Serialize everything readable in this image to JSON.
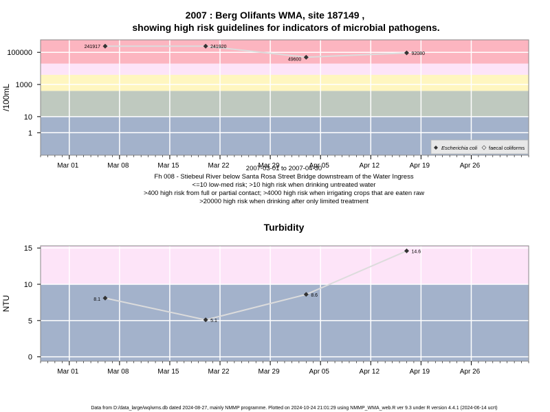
{
  "title_line1": "2007 : Berg Olifants WMA, site 187149 ,",
  "title_line2": "showing high risk guidelines for indicators of microbial pathogens.",
  "captions": [
    "2007-03-01 to 2007-04-30",
    "Fh 008 - Stiebeul River below Santa Rosa Street Bridge downstream of the Water Ingress",
    "<=10 low-med risk; >10 high risk when drinking untreated water",
    ">400 high risk from full or partial contact; >4000 high risk when irrigating crops that are eaten raw",
    ">20000 high risk when drinking after only limited treatment"
  ],
  "footer": "Data from D:/data_large/wq/wms.db dated 2024-08-27, mainly NMMP programme. Plotted on 2024-10-24 21:01:29 using NMMP_WMA_web.R ver 9.3 under R version 4.4.1 (2024-06-14 ucrt)",
  "x_ticks": [
    "Mar 01",
    "Mar 08",
    "Mar 15",
    "Mar 22",
    "Mar 29",
    "Apr 05",
    "Apr 12",
    "Apr 19",
    "Apr 26"
  ],
  "colors": {
    "band_blue": "#a3b2cb",
    "band_green": "#bfc9bf",
    "band_yellow": "#fff6c0",
    "band_pink_light": "#fde4f8",
    "band_red": "#fcb5c0",
    "line_grey": "#dcdcdc",
    "grid_white": "#ffffff",
    "point": "#333333"
  },
  "chart_data": [
    {
      "type": "line",
      "title": "",
      "xlabel": "",
      "ylabel": "/100mL",
      "y_scale": "log",
      "y_ticks": [
        "100000",
        "1000",
        "10",
        "1"
      ],
      "x": [
        "2007-03-06",
        "2007-03-20",
        "2007-04-03",
        "2007-04-17"
      ],
      "series": [
        {
          "name": "Escherichia coli",
          "values": [
            241917,
            241920,
            49600,
            92080
          ],
          "labels": [
            "241917",
            "241920",
            "49600",
            "92080"
          ]
        }
      ],
      "legend": {
        "placement": "bottom-right",
        "entries": [
          "Escherichia coli",
          "faecal coliforms"
        ]
      },
      "risk_bands": [
        {
          "from": 0.04,
          "to": 10,
          "color": "band_blue"
        },
        {
          "from": 10,
          "to": 400,
          "color": "band_green"
        },
        {
          "from": 400,
          "to": 4000,
          "color": "band_yellow"
        },
        {
          "from": 4000,
          "to": 20000,
          "color": "band_pink_light"
        },
        {
          "from": 20000,
          "to": 600000,
          "color": "band_red"
        }
      ]
    },
    {
      "type": "line",
      "title": "Turbidity",
      "xlabel": "",
      "ylabel": "NTU",
      "ylim": [
        -0.6,
        15.3
      ],
      "y_ticks": [
        "0",
        "5",
        "10",
        "15"
      ],
      "x": [
        "2007-03-06",
        "2007-03-20",
        "2007-04-03",
        "2007-04-17"
      ],
      "series": [
        {
          "values": [
            8.1,
            5.1,
            8.6,
            14.6
          ],
          "labels": [
            "8.1",
            "5.1",
            "8.6",
            "14.6"
          ]
        }
      ],
      "risk_bands": [
        {
          "from": -0.6,
          "to": 10,
          "color": "band_blue"
        },
        {
          "from": 10,
          "to": 15.3,
          "color": "band_pink_light"
        }
      ]
    }
  ]
}
